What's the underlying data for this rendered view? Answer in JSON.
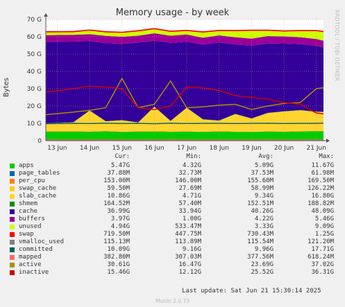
{
  "chart_data": {
    "type": "area",
    "title": "Memory usage - by week",
    "side_label": "RRDTOOL / TOBI OETIKER",
    "ylabel": "Bytes",
    "y_ticks": [
      "0",
      "10 G",
      "20 G",
      "30 G",
      "40 G",
      "50 G",
      "60 G",
      "70 G"
    ],
    "ylim": [
      0,
      70
    ],
    "x_ticks": [
      "13 Jun",
      "14 Jun",
      "15 Jun",
      "16 Jun",
      "17 Jun",
      "18 Jun",
      "19 Jun",
      "20 Jun",
      "21 Jun"
    ],
    "x_days": [
      0,
      1,
      2,
      3,
      4,
      5,
      6,
      7,
      8
    ],
    "x_range": [
      -0.35,
      8.22
    ],
    "grid": true,
    "x": [
      -0.35,
      0.5,
      1.0,
      1.5,
      2.0,
      2.5,
      3.0,
      3.5,
      4.0,
      4.5,
      5.0,
      5.5,
      6.0,
      6.5,
      7.0,
      7.5,
      8.0,
      8.22
    ],
    "series": [
      {
        "name": "apps",
        "color": "#00cc00",
        "values": [
          5.2,
          5.3,
          5.1,
          5.4,
          5.0,
          5.2,
          5.3,
          5.1,
          5.2,
          5.0,
          5.3,
          5.1,
          5.0,
          5.2,
          5.1,
          5.3,
          5.4,
          5.47
        ]
      },
      {
        "name": "page_tables",
        "color": "#0066b3",
        "values": [
          0.04,
          0.04,
          0.04,
          0.04,
          0.04,
          0.04,
          0.04,
          0.04,
          0.04,
          0.04,
          0.04,
          0.04,
          0.04,
          0.04,
          0.04,
          0.04,
          0.04,
          0.04
        ]
      },
      {
        "name": "per_cpu",
        "color": "#ff8000",
        "values": [
          0.15,
          0.15,
          0.15,
          0.15,
          0.15,
          0.15,
          0.15,
          0.15,
          0.15,
          0.15,
          0.15,
          0.15,
          0.15,
          0.15,
          0.15,
          0.15,
          0.15,
          0.15
        ]
      },
      {
        "name": "swap_cache",
        "color": "#ffcc00",
        "values": [
          0.06,
          0.06,
          0.06,
          0.06,
          0.06,
          0.06,
          0.06,
          0.06,
          0.06,
          0.06,
          0.06,
          0.06,
          0.06,
          0.06,
          0.06,
          0.06,
          0.06,
          0.06
        ]
      },
      {
        "name": "slab_cache",
        "color": "#fed530",
        "values": [
          4.5,
          5.0,
          12.0,
          5.5,
          6.5,
          5.0,
          14.0,
          6.0,
          13.5,
          7.0,
          6.0,
          10.0,
          7.5,
          10.5,
          11.5,
          12.0,
          11.0,
          10.86
        ]
      },
      {
        "name": "shmem",
        "color": "#008f00",
        "values": [
          0.15,
          0.15,
          0.15,
          0.15,
          0.15,
          0.15,
          0.15,
          0.15,
          0.15,
          0.15,
          0.15,
          0.15,
          0.15,
          0.15,
          0.15,
          0.15,
          0.15,
          0.16
        ]
      },
      {
        "name": "cache",
        "color": "#330099",
        "values": [
          47.0,
          46.5,
          40.0,
          45.0,
          44.0,
          46.0,
          38.0,
          45.0,
          38.0,
          43.0,
          45.0,
          40.0,
          42.0,
          40.0,
          39.0,
          38.0,
          38.0,
          36.99
        ]
      },
      {
        "name": "buffers",
        "color": "#990099",
        "values": [
          3.8,
          3.9,
          4.0,
          4.2,
          4.1,
          4.0,
          4.3,
          4.1,
          4.2,
          4.0,
          4.1,
          4.2,
          4.0,
          4.3,
          4.2,
          4.0,
          3.9,
          3.97
        ]
      },
      {
        "name": "unused",
        "color": "#ccff00",
        "values": [
          1.6,
          1.5,
          2.0,
          2.0,
          2.2,
          2.5,
          2.3,
          2.2,
          2.0,
          3.0,
          2.5,
          3.5,
          4.5,
          3.0,
          2.8,
          3.5,
          4.5,
          4.94
        ]
      },
      {
        "name": "swap",
        "color": "#ff0000",
        "values": [
          0.7,
          0.7,
          0.7,
          0.7,
          0.7,
          0.7,
          0.7,
          0.7,
          0.7,
          0.7,
          0.7,
          0.7,
          0.7,
          0.7,
          0.7,
          0.7,
          0.7,
          0.72
        ]
      },
      {
        "name": "vmalloc_used",
        "color": "#808080",
        "type": "line",
        "values": [
          0.12,
          0.12,
          0.12,
          0.12,
          0.12,
          0.12,
          0.12,
          0.12,
          0.12,
          0.12,
          0.12,
          0.12,
          0.12,
          0.12,
          0.12,
          0.12,
          0.12,
          0.12
        ]
      },
      {
        "name": "committed",
        "color": "#005f5f",
        "type": "line",
        "values": [
          9.8,
          10.0,
          9.9,
          10.1,
          9.9,
          10.0,
          9.8,
          10.1,
          9.9,
          10.0,
          10.0,
          9.9,
          10.0,
          10.1,
          9.9,
          10.0,
          10.0,
          10.09
        ]
      },
      {
        "name": "mapped",
        "color": "#ff6666",
        "type": "line",
        "values": [
          0.35,
          0.38,
          0.36,
          0.39,
          0.37,
          0.38,
          0.36,
          0.39,
          0.37,
          0.38,
          0.38,
          0.36,
          0.37,
          0.39,
          0.38,
          0.37,
          0.38,
          0.38
        ]
      },
      {
        "name": "active",
        "color": "#a89000",
        "type": "line",
        "values": [
          15.0,
          16.5,
          17.5,
          19.0,
          36.0,
          19.0,
          21.0,
          34.5,
          19.0,
          19.5,
          20.5,
          21.0,
          18.0,
          20.0,
          21.5,
          22.0,
          30.0,
          30.61
        ]
      },
      {
        "name": "inactive",
        "color": "#cc0000",
        "type": "line",
        "values": [
          28.0,
          30.0,
          31.5,
          31.0,
          30.0,
          19.0,
          18.0,
          20.0,
          31.0,
          30.5,
          29.0,
          26.0,
          25.0,
          24.0,
          22.0,
          21.0,
          16.0,
          15.46
        ]
      }
    ]
  },
  "legend": {
    "headers": {
      "cur": "Cur:",
      "min": "Min:",
      "avg": "Avg:",
      "max": "Max:"
    },
    "rows": [
      {
        "name": "apps",
        "color": "#00cc00",
        "cur": "5.47G",
        "min": "4.32G",
        "avg": "5.09G",
        "max": "11.67G"
      },
      {
        "name": "page_tables",
        "color": "#0066b3",
        "cur": "37.88M",
        "min": "32.73M",
        "avg": "37.53M",
        "max": "61.98M"
      },
      {
        "name": "per_cpu",
        "color": "#ff8000",
        "cur": "153.00M",
        "min": "146.00M",
        "avg": "155.60M",
        "max": "169.50M"
      },
      {
        "name": "swap_cache",
        "color": "#ffcc00",
        "cur": "59.50M",
        "min": "27.69M",
        "avg": "58.99M",
        "max": "126.22M"
      },
      {
        "name": "slab_cache",
        "color": "#fed530",
        "cur": "10.86G",
        "min": "4.71G",
        "avg": "9.34G",
        "max": "16.80G"
      },
      {
        "name": "shmem",
        "color": "#008f00",
        "cur": "164.52M",
        "min": "57.40M",
        "avg": "152.51M",
        "max": "188.82M"
      },
      {
        "name": "cache",
        "color": "#330099",
        "cur": "36.99G",
        "min": "33.94G",
        "avg": "40.26G",
        "max": "48.09G"
      },
      {
        "name": "buffers",
        "color": "#990099",
        "cur": "3.97G",
        "min": "1.00G",
        "avg": "4.22G",
        "max": "5.46G"
      },
      {
        "name": "unused",
        "color": "#ccff00",
        "cur": "4.94G",
        "min": "533.47M",
        "avg": "3.33G",
        "max": "9.09G"
      },
      {
        "name": "swap",
        "color": "#ff0000",
        "cur": "719.50M",
        "min": "447.75M",
        "avg": "730.43M",
        "max": "1.25G"
      },
      {
        "name": "vmalloc_used",
        "color": "#808080",
        "cur": "115.13M",
        "min": "113.89M",
        "avg": "115.54M",
        "max": "121.20M"
      },
      {
        "name": "committed",
        "color": "#005f5f",
        "cur": "10.09G",
        "min": "9.16G",
        "avg": "9.96G",
        "max": "17.71G"
      },
      {
        "name": "mapped",
        "color": "#ff6666",
        "cur": "382.80M",
        "min": "307.03M",
        "avg": "377.56M",
        "max": "618.24M"
      },
      {
        "name": "active",
        "color": "#a89000",
        "cur": "30.61G",
        "min": "16.47G",
        "avg": "23.69G",
        "max": "37.02G"
      },
      {
        "name": "inactive",
        "color": "#cc0000",
        "cur": "15.46G",
        "min": "12.12G",
        "avg": "25.52G",
        "max": "36.31G"
      }
    ]
  },
  "footer": {
    "last_update": "Last update:  Sat Jun 21 15:30:14 2025",
    "munin": "Munin 2.0.73"
  }
}
